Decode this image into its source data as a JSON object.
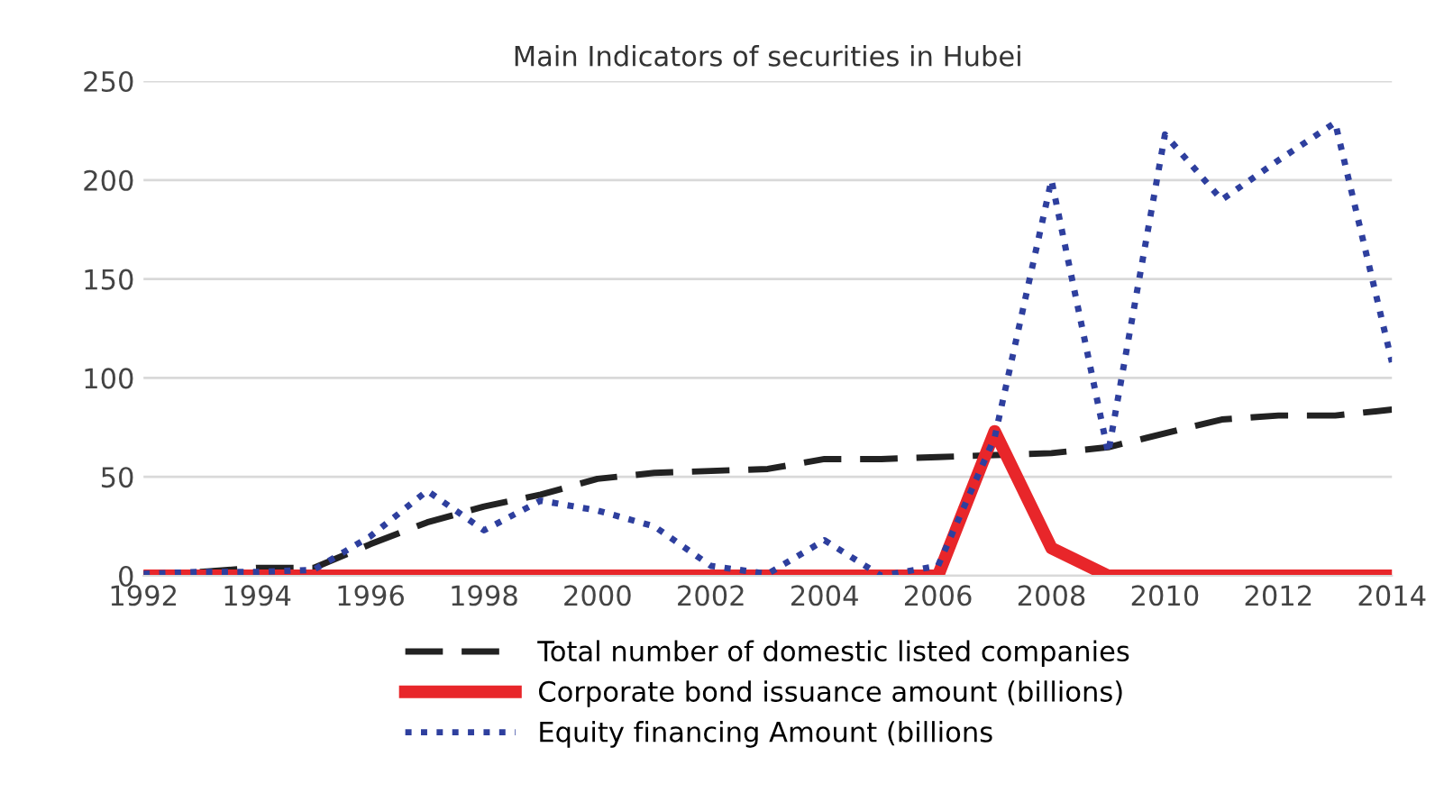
{
  "chart_data": {
    "type": "line",
    "title": "Main Indicators of securities in Hubei",
    "x": [
      1992,
      1993,
      1994,
      1995,
      1996,
      1997,
      1998,
      1999,
      2000,
      2001,
      2002,
      2003,
      2004,
      2005,
      2006,
      2007,
      2008,
      2009,
      2010,
      2011,
      2012,
      2013,
      2014
    ],
    "series": [
      {
        "name": "Total number of domestic listed companies",
        "color": "#222222",
        "line_style": "dashed",
        "values": [
          1,
          2,
          4,
          4,
          16,
          27,
          35,
          41,
          49,
          52,
          53,
          54,
          59,
          59,
          60,
          61,
          62,
          65,
          72,
          79,
          81,
          81,
          84
        ]
      },
      {
        "name": "Corporate bond issuance amount (billions)",
        "color": "#e8262a",
        "line_style": "solid",
        "values": [
          0,
          0,
          0,
          0,
          0,
          0,
          0,
          0,
          0,
          0,
          0,
          0,
          0,
          0,
          0,
          73,
          14,
          0,
          0,
          0,
          0,
          0,
          0
        ]
      },
      {
        "name": "Equity financing Amount (billions",
        "color": "#2e3f9e",
        "line_style": "dotted",
        "values": [
          1,
          2,
          2,
          3,
          20,
          43,
          23,
          38,
          33,
          25,
          5,
          1,
          18,
          0,
          5,
          70,
          200,
          62,
          223,
          190,
          210,
          229,
          108
        ]
      }
    ],
    "xlim": [
      1992,
      2014
    ],
    "xticks": [
      1992,
      1994,
      1996,
      1998,
      2000,
      2002,
      2004,
      2006,
      2008,
      2010,
      2012,
      2014
    ],
    "ylim": [
      0,
      250
    ],
    "yticks": [
      0,
      50,
      100,
      150,
      200,
      250
    ],
    "grid": "y",
    "legend": "bottom",
    "marker": "none"
  }
}
